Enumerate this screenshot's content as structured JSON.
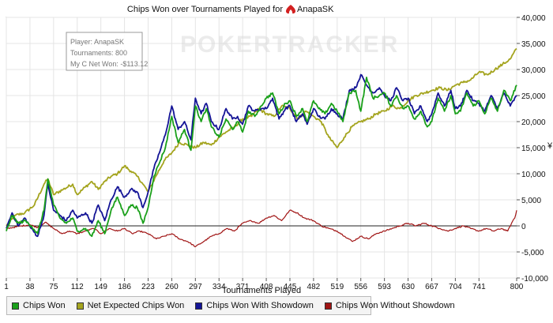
{
  "chart_data": {
    "type": "line",
    "title": "Chips Won over Tournaments Played for",
    "player_name": "AnapaSK",
    "xlabel": "Tournaments Played",
    "ylabel": "¥",
    "xlim": [
      1,
      800
    ],
    "ylim": [
      -10000,
      40000
    ],
    "x_ticks": [
      1,
      38,
      75,
      112,
      149,
      186,
      223,
      260,
      297,
      334,
      371,
      408,
      445,
      482,
      519,
      556,
      593,
      630,
      667,
      704,
      741,
      800
    ],
    "y_ticks": [
      -10000,
      -5000,
      0,
      5000,
      10000,
      15000,
      20000,
      25000,
      30000,
      35000,
      40000
    ],
    "y_tick_labels": [
      "-10,000",
      "-5,000",
      "0",
      "5,000",
      "10,000",
      "15,000",
      "20,000",
      "25,000",
      "30,000",
      "35,000",
      "40,000"
    ],
    "watermark": "POKERTRACKER",
    "info_box": {
      "player": "Player: AnapaSK",
      "tournaments": "Tournaments: 800",
      "net_won": "My C Net Won: -$113.12"
    },
    "series": [
      {
        "name": "Chips Won",
        "color": "#1aa01a",
        "x": [
          1,
          10,
          20,
          30,
          40,
          50,
          60,
          66,
          75,
          85,
          95,
          105,
          112,
          125,
          135,
          145,
          155,
          165,
          175,
          186,
          196,
          206,
          215,
          223,
          232,
          242,
          250,
          260,
          270,
          280,
          290,
          297,
          306,
          314,
          322,
          334,
          345,
          355,
          363,
          371,
          380,
          390,
          400,
          408,
          418,
          428,
          438,
          445,
          455,
          465,
          472,
          482,
          490,
          500,
          510,
          519,
          528,
          538,
          548,
          556,
          565,
          575,
          585,
          593,
          603,
          612,
          622,
          630,
          640,
          650,
          660,
          667,
          677,
          687,
          697,
          704,
          712,
          722,
          732,
          741,
          750,
          760,
          770,
          780,
          790,
          800
        ],
        "values": [
          -1000,
          2000,
          500,
          1000,
          0,
          -1500,
          3000,
          9000,
          4000,
          1500,
          500,
          1500,
          -1000,
          -500,
          -2000,
          1000,
          -1500,
          3000,
          5500,
          2000,
          4000,
          3500,
          500,
          3500,
          9500,
          12500,
          15000,
          21000,
          16000,
          18500,
          14500,
          23000,
          20000,
          22500,
          19000,
          17000,
          20500,
          18500,
          20000,
          18000,
          22000,
          21000,
          23000,
          24500,
          25500,
          21500,
          23500,
          24000,
          21000,
          22500,
          20000,
          24000,
          22500,
          21500,
          23500,
          22000,
          20000,
          25500,
          26000,
          22000,
          28500,
          24500,
          25000,
          25500,
          23000,
          25000,
          22500,
          23000,
          20500,
          22000,
          19000,
          20000,
          24500,
          22000,
          25000,
          21500,
          22000,
          25500,
          23000,
          24000,
          21500,
          24500,
          22000,
          26000,
          24000,
          27000
        ]
      },
      {
        "name": "Net Expected Chips Won",
        "color": "#a4a41e",
        "x": [
          1,
          15,
          30,
          45,
          60,
          66,
          75,
          90,
          105,
          112,
          125,
          135,
          145,
          155,
          165,
          175,
          186,
          196,
          206,
          215,
          223,
          235,
          248,
          260,
          272,
          285,
          297,
          310,
          322,
          334,
          345,
          358,
          371,
          385,
          396,
          408,
          420,
          432,
          445,
          458,
          470,
          482,
          494,
          506,
          519,
          530,
          542,
          556,
          568,
          580,
          593,
          605,
          617,
          630,
          642,
          655,
          667,
          680,
          692,
          704,
          716,
          728,
          741,
          754,
          766,
          778,
          790,
          800
        ],
        "values": [
          0,
          2000,
          2500,
          4000,
          8000,
          9000,
          6000,
          7000,
          8000,
          6000,
          7500,
          8500,
          7000,
          8500,
          9500,
          10000,
          11500,
          10500,
          9500,
          8000,
          6500,
          9500,
          12500,
          14000,
          16000,
          15500,
          15000,
          16000,
          15500,
          17000,
          18000,
          19000,
          20500,
          21000,
          22500,
          21500,
          21000,
          23000,
          22500,
          20500,
          22000,
          21000,
          20000,
          17000,
          15000,
          17000,
          19000,
          20000,
          20500,
          21500,
          22000,
          23000,
          22500,
          24000,
          25000,
          25500,
          26000,
          26500,
          26000,
          27000,
          27500,
          28000,
          29500,
          29000,
          30000,
          31000,
          32000,
          34000
        ]
      },
      {
        "name": "Chips Won With Showdown",
        "color": "#141496",
        "x": [
          1,
          10,
          20,
          30,
          40,
          50,
          60,
          66,
          75,
          85,
          95,
          105,
          112,
          125,
          135,
          145,
          155,
          165,
          175,
          186,
          196,
          206,
          215,
          223,
          232,
          242,
          250,
          260,
          270,
          280,
          290,
          297,
          306,
          314,
          322,
          334,
          345,
          355,
          363,
          371,
          380,
          390,
          400,
          408,
          418,
          428,
          438,
          445,
          455,
          465,
          472,
          482,
          490,
          500,
          510,
          519,
          528,
          538,
          548,
          556,
          565,
          575,
          585,
          593,
          603,
          612,
          622,
          630,
          640,
          650,
          660,
          667,
          677,
          687,
          697,
          704,
          712,
          722,
          732,
          741,
          750,
          760,
          770,
          780,
          790,
          800
        ],
        "values": [
          -500,
          2500,
          0,
          1500,
          -500,
          -2000,
          2000,
          8000,
          3000,
          2000,
          1000,
          3000,
          1500,
          2500,
          500,
          4000,
          1000,
          5000,
          7500,
          5500,
          7000,
          6500,
          3500,
          6500,
          11000,
          14500,
          17500,
          23000,
          18500,
          20000,
          16500,
          24500,
          21500,
          23500,
          20000,
          18500,
          22500,
          20500,
          21000,
          19500,
          23000,
          22000,
          22500,
          22500,
          24500,
          20500,
          22500,
          23000,
          20000,
          21500,
          19500,
          22500,
          21000,
          20500,
          22500,
          21500,
          20500,
          26000,
          26500,
          29000,
          27000,
          25500,
          26500,
          25000,
          24000,
          26500,
          24000,
          24500,
          21500,
          23000,
          20000,
          21500,
          25500,
          23000,
          26000,
          22500,
          23000,
          26000,
          24000,
          23500,
          22000,
          25000,
          22500,
          25500,
          23000,
          25000
        ]
      },
      {
        "name": "Chips Won Without Showdown",
        "color": "#a01414",
        "x": [
          1,
          12,
          25,
          38,
          50,
          62,
          75,
          88,
          100,
          112,
          125,
          138,
          149,
          162,
          175,
          186,
          198,
          210,
          223,
          236,
          248,
          260,
          272,
          285,
          297,
          310,
          322,
          334,
          346,
          358,
          371,
          384,
          396,
          408,
          420,
          432,
          445,
          456,
          468,
          482,
          494,
          506,
          519,
          531,
          543,
          556,
          568,
          580,
          593,
          605,
          617,
          630,
          642,
          655,
          667,
          680,
          692,
          704,
          716,
          728,
          741,
          752,
          764,
          776,
          786,
          792,
          797,
          800
        ],
        "values": [
          -500,
          -300,
          0,
          200,
          -300,
          700,
          -500,
          -1500,
          -1000,
          -1500,
          -1000,
          -500,
          -1500,
          -500,
          -1000,
          -500,
          -1500,
          -1000,
          -1500,
          -2500,
          -2000,
          -1500,
          -2500,
          -3000,
          -4000,
          -3000,
          -2000,
          -1500,
          -500,
          -1000,
          500,
          1000,
          500,
          1500,
          2000,
          1000,
          3000,
          2500,
          1500,
          1000,
          0,
          -500,
          -1000,
          -2000,
          -3000,
          -2000,
          -2500,
          -1500,
          -1000,
          -500,
          0,
          500,
          0,
          500,
          0,
          -500,
          -1000,
          -500,
          0,
          -500,
          -1000,
          -500,
          -1000,
          -500,
          -1000,
          500,
          1500,
          3000
        ]
      }
    ],
    "legend_position": "bottom-left",
    "grid": true
  }
}
